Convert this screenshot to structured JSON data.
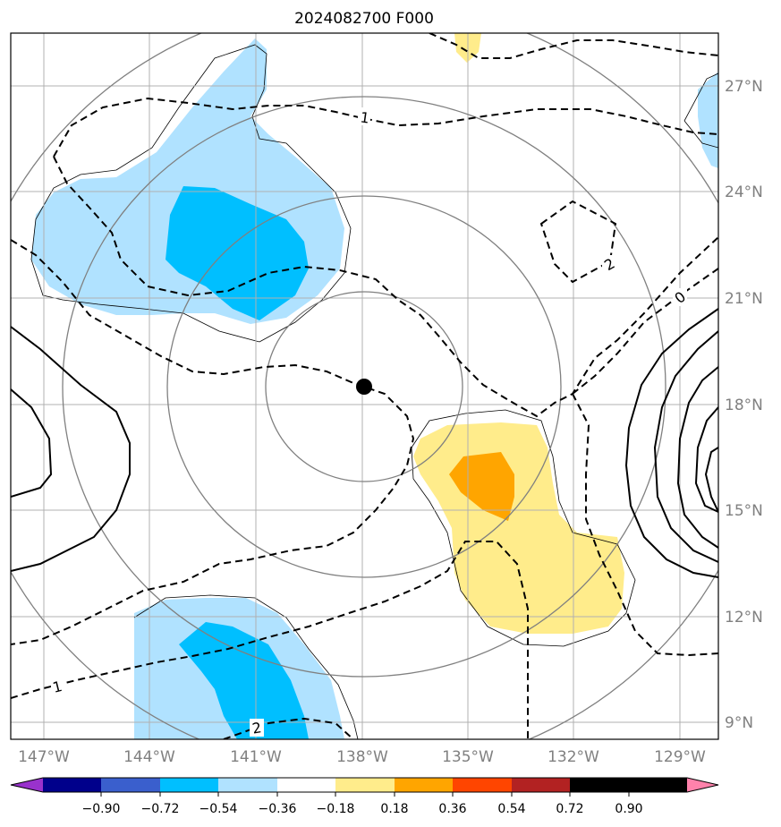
{
  "title": "2024082700 F000",
  "map": {
    "lon_labels": [
      "147°W",
      "144°W",
      "141°W",
      "138°W",
      "135°W",
      "132°W",
      "129°W"
    ],
    "lat_labels": [
      "27°N",
      "24°N",
      "21°N",
      "18°N",
      "15°N",
      "12°N",
      "9°N"
    ],
    "storm_center": {
      "lon": "138°W",
      "lat": "18.5°N"
    }
  },
  "contour_labels": {
    "a": "1",
    "b": "2",
    "c": "0",
    "d": "1",
    "e": "2"
  },
  "colorbar": {
    "ticks": [
      "−0.90",
      "−0.72",
      "−0.54",
      "−0.36",
      "−0.18",
      "0.18",
      "0.36",
      "0.54",
      "0.72",
      "0.90"
    ],
    "colors": [
      "#9932cc",
      "#00008b",
      "#3a5fcd",
      "#00bfff",
      "#b0e2ff",
      "#ffffff",
      "#ffec8b",
      "#ffa500",
      "#ff4500",
      "#b22222",
      "#ff82ab"
    ]
  }
}
